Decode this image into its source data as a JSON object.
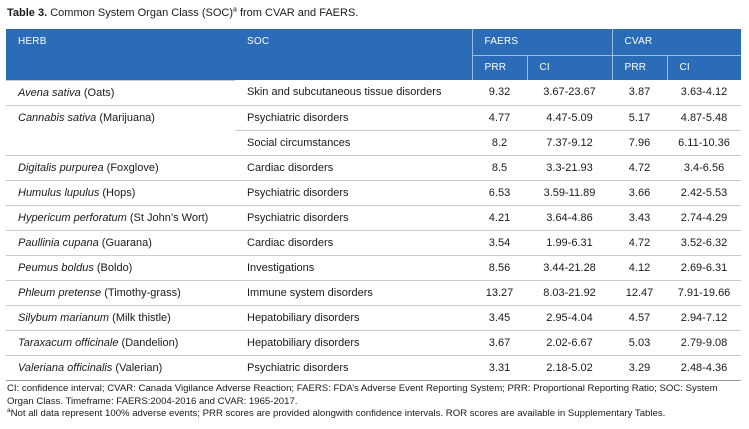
{
  "caption": {
    "label": "Table 3.",
    "text_before": "Common System Organ Class (SOC)",
    "sup": "a",
    "text_after": " from CVAR and FAERS."
  },
  "header": {
    "herb": "HERB",
    "soc": "SOC",
    "faers": "FAERS",
    "cvar": "CVAR",
    "prr": "PRR",
    "ci": "CI"
  },
  "rows": [
    {
      "latin": "Avena sativa",
      "common": " (Oats)",
      "soc": "Skin and subcutaneous tissue disorders",
      "faers_prr": "9.32",
      "faers_ci": "3.67-23.67",
      "cvar_prr": "3.87",
      "cvar_ci": "3.63-4.12"
    },
    {
      "latin": "Cannabis sativa",
      "common": " (Marijuana)",
      "soc": "Psychiatric disorders",
      "faers_prr": "4.77",
      "faers_ci": "4.47-5.09",
      "cvar_prr": "5.17",
      "cvar_ci": "4.87-5.48"
    },
    {
      "latin": "",
      "common": "",
      "soc": "Social circumstances",
      "faers_prr": "8.2",
      "faers_ci": "7.37-9.12",
      "cvar_prr": "7.96",
      "cvar_ci": "6.11-10.36"
    },
    {
      "latin": "Digitalis purpurea",
      "common": " (Foxglove)",
      "soc": "Cardiac disorders",
      "faers_prr": "8.5",
      "faers_ci": "3.3-21.93",
      "cvar_prr": "4.72",
      "cvar_ci": "3.4-6.56"
    },
    {
      "latin": "Humulus lupulus",
      "common": " (Hops)",
      "soc": "Psychiatric disorders",
      "faers_prr": "6.53",
      "faers_ci": "3.59-11.89",
      "cvar_prr": "3.66",
      "cvar_ci": "2.42-5.53"
    },
    {
      "latin": "Hypericum perforatum",
      "common": " (St John’s Wort)",
      "soc": "Psychiatric disorders",
      "faers_prr": "4.21",
      "faers_ci": "3.64-4.86",
      "cvar_prr": "3.43",
      "cvar_ci": "2.74-4.29"
    },
    {
      "latin": "Paullinia cupana",
      "common": " (Guarana)",
      "soc": "Cardiac disorders",
      "faers_prr": "3.54",
      "faers_ci": "1.99-6.31",
      "cvar_prr": "4.72",
      "cvar_ci": "3.52-6.32"
    },
    {
      "latin": "Peumus boldus",
      "common": " (Boldo)",
      "soc": "Investigations",
      "faers_prr": "8.56",
      "faers_ci": "3.44-21.28",
      "cvar_prr": "4.12",
      "cvar_ci": "2.69-6.31"
    },
    {
      "latin": "Phleum pretense",
      "common": " (Timothy-grass)",
      "soc": "Immune system disorders",
      "faers_prr": "13.27",
      "faers_ci": "8.03-21.92",
      "cvar_prr": "12.47",
      "cvar_ci": "7.91-19.66"
    },
    {
      "latin": "Silybum marianum",
      "common": " (Milk thistle)",
      "soc": "Hepatobiliary disorders",
      "faers_prr": "3.45",
      "faers_ci": "2.95-4.04",
      "cvar_prr": "4.57",
      "cvar_ci": "2.94-7.12"
    },
    {
      "latin": "Taraxacum officinale",
      "common": " (Dandelion)",
      "soc": "Hepatobiliary disorders",
      "faers_prr": "3.67",
      "faers_ci": "2.02-6.67",
      "cvar_prr": "5.03",
      "cvar_ci": "2.79-9.08"
    },
    {
      "latin": "Valeriana officinalis",
      "common": " (Valerian)",
      "soc": "Psychiatric disorders",
      "faers_prr": "3.31",
      "faers_ci": "2.18-5.02",
      "cvar_prr": "3.29",
      "cvar_ci": "2.48-4.36"
    }
  ],
  "footnotes": {
    "abbreviations": "CI: confidence interval; CVAR: Canada Vigilance Adverse Reaction; FAERS: FDA’s Adverse Event Reporting System; PRR: Proportional Reporting Ratio; SOC: System Organ Class. Timeframe: FAERS:2004-2016 and CVAR: 1965-2017.",
    "note_marker": "a",
    "note": "Not all data represent 100% adverse events; PRR scores are provided alongwith confidence intervals. ROR scores are available in Supplementary Tables."
  }
}
